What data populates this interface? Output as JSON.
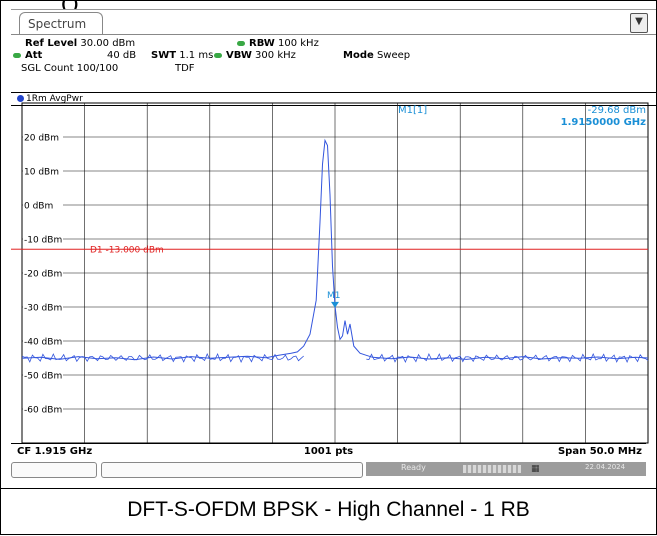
{
  "window": {
    "tab_title": "Spectrum",
    "header_fragment": "(   )"
  },
  "settings": {
    "ref_level_label": "Ref Level",
    "ref_level_value": "30.00 dBm",
    "att_label": "Att",
    "att_value": "40 dB",
    "swt_label": "SWT",
    "swt_value": "1.1 ms",
    "rbw_label": "RBW",
    "rbw_value": "100 kHz",
    "vbw_label": "VBW",
    "vbw_value": "300 kHz",
    "mode_label": "Mode",
    "mode_value": "Sweep",
    "sgl_count": "SGL Count 100/100",
    "tdf": "TDF",
    "coupled_indicator_color": "#39a845"
  },
  "trace_label": "1Rm AvgPwr",
  "marker": {
    "name": "M1[1]",
    "label": "M1",
    "level_text": "-29.68 dBm",
    "freq_text": "1.9150000 GHz",
    "color": "#1a8fd6"
  },
  "display_line": {
    "label": "D1 -13.000 dBm",
    "color": "#e02020"
  },
  "footer": {
    "center_freq": "CF 1.915 GHz",
    "points": "1001 pts",
    "span": "Span 50.0 MHz"
  },
  "status": {
    "ready": "Ready",
    "date": "22.04.2024"
  },
  "caption": "DFT-S-OFDM BPSK - High Channel - 1 RB",
  "chart_data": {
    "type": "line",
    "x_unit": "MHz offset from CF",
    "xlim": [
      -25,
      25
    ],
    "ylim": [
      -70,
      30
    ],
    "y_ticks": [
      20,
      10,
      0,
      -10,
      -20,
      -30,
      -40,
      -50,
      -60
    ],
    "y_tick_labels": [
      "20 dBm",
      "10 dBm",
      "0 dBm",
      "-10 dBm",
      "-20 dBm",
      "-30 dBm",
      "-40 dBm",
      "-50 dBm",
      "-60 dBm"
    ],
    "x_divisions": 10,
    "grid": true,
    "display_line_level": -13,
    "marker": {
      "x": 0,
      "y": -29.68
    },
    "trace_color": "#3355dd",
    "series": [
      {
        "name": "1Rm AvgPwr",
        "points": [
          [
            -25.0,
            -45.1
          ],
          [
            -23.5,
            -44.8
          ],
          [
            -22.0,
            -45.4
          ],
          [
            -20.5,
            -44.6
          ],
          [
            -19.0,
            -45.2
          ],
          [
            -17.5,
            -44.9
          ],
          [
            -16.0,
            -45.5
          ],
          [
            -14.5,
            -44.7
          ],
          [
            -13.0,
            -45.3
          ],
          [
            -11.5,
            -44.6
          ],
          [
            -10.0,
            -45.1
          ],
          [
            -8.5,
            -44.8
          ],
          [
            -7.0,
            -44.5
          ],
          [
            -5.5,
            -44.9
          ],
          [
            -4.5,
            -44.2
          ],
          [
            -3.5,
            -43.6
          ],
          [
            -3.0,
            -43.2
          ],
          [
            -2.5,
            -41.5
          ],
          [
            -2.0,
            -38.0
          ],
          [
            -1.5,
            -28.0
          ],
          [
            -1.2,
            -5.0
          ],
          [
            -1.0,
            12.0
          ],
          [
            -0.8,
            19.0
          ],
          [
            -0.6,
            17.5
          ],
          [
            -0.4,
            3.0
          ],
          [
            -0.2,
            -18.0
          ],
          [
            0.0,
            -29.68
          ],
          [
            0.2,
            -36.0
          ],
          [
            0.4,
            -39.5
          ],
          [
            0.6,
            -38.5
          ],
          [
            0.8,
            -34.0
          ],
          [
            1.0,
            -38.0
          ],
          [
            1.2,
            -35.0
          ],
          [
            1.5,
            -41.5
          ],
          [
            2.0,
            -43.6
          ],
          [
            2.5,
            -44.2
          ],
          [
            3.0,
            -44.8
          ],
          [
            4.5,
            -45.2
          ],
          [
            6.0,
            -44.7
          ],
          [
            7.5,
            -45.3
          ],
          [
            9.0,
            -44.9
          ],
          [
            10.5,
            -45.4
          ],
          [
            12.0,
            -44.8
          ],
          [
            13.5,
            -45.2
          ],
          [
            15.0,
            -44.6
          ],
          [
            16.5,
            -45.3
          ],
          [
            18.0,
            -44.9
          ],
          [
            19.5,
            -45.1
          ],
          [
            21.0,
            -44.7
          ],
          [
            22.5,
            -45.2
          ],
          [
            24.0,
            -44.8
          ],
          [
            25.0,
            -45.0
          ]
        ]
      }
    ]
  }
}
